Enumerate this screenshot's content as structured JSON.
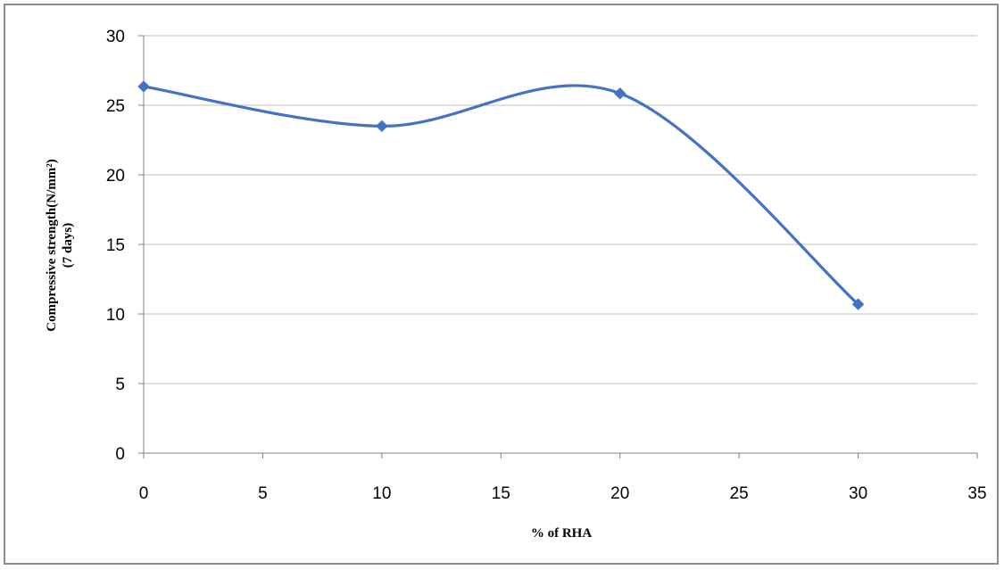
{
  "chart_data": {
    "type": "scatter",
    "title": "",
    "xlabel": "% of RHA",
    "ylabel_lines": [
      "Compressive strength(N/mm²)",
      "(7 days)"
    ],
    "xlim": [
      0,
      35
    ],
    "ylim": [
      0,
      30
    ],
    "xticks": [
      "0",
      "5",
      "10",
      "15",
      "20",
      "25",
      "30",
      "35"
    ],
    "yticks": [
      "0",
      "5",
      "10",
      "15",
      "20",
      "25",
      "30"
    ],
    "grid": "horizontal",
    "smooth_line": true,
    "marker": "diamond",
    "series": [
      {
        "color": "#4472C4",
        "x": [
          0,
          10,
          20,
          30
        ],
        "y": [
          26.35,
          23.5,
          25.85,
          10.7
        ]
      }
    ]
  }
}
